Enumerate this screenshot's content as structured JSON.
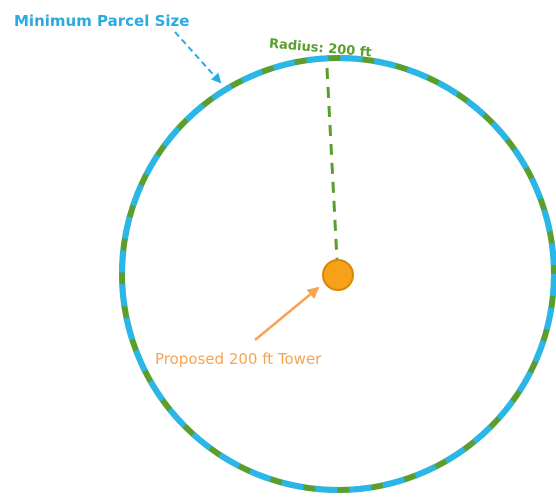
{
  "labels": {
    "parcel": "Minimum Parcel Size",
    "radius": "Radius: 200 ft",
    "tower": "Proposed 200 ft Tower"
  }
}
